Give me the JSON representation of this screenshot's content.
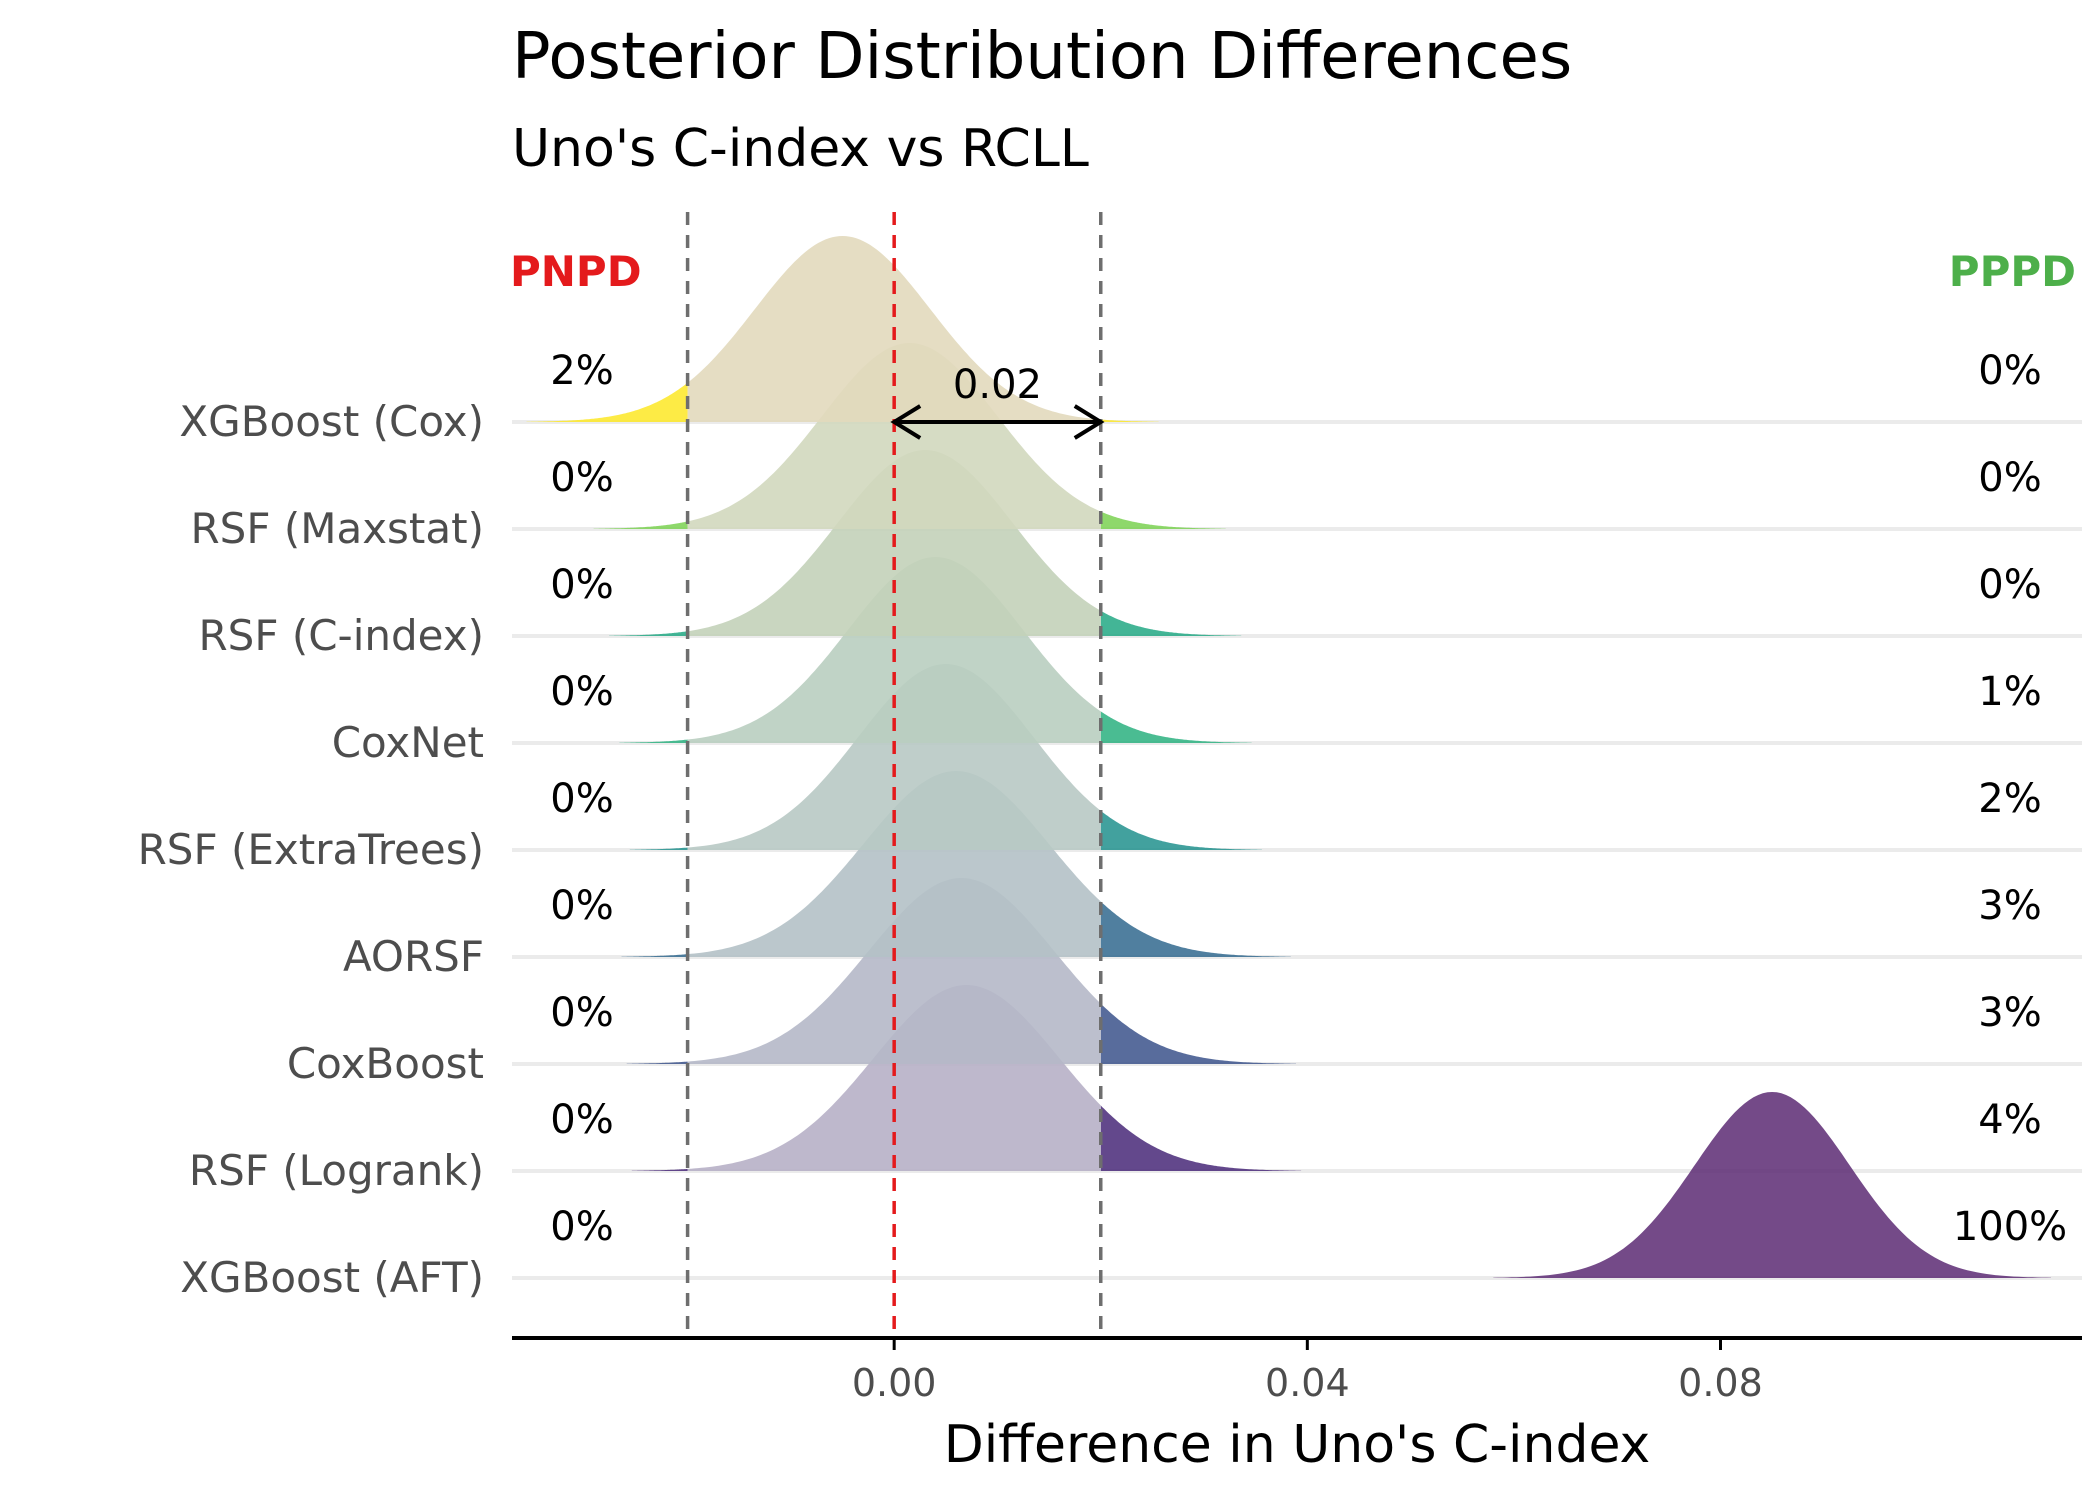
{
  "chart_data": {
    "type": "ridgeline",
    "title": "Posterior Distribution Differences",
    "subtitle": "Uno's C-index vs RCLL",
    "xlabel": "Difference in Uno's C-index",
    "xlim": [
      -0.037,
      0.115
    ],
    "xticks": [
      "0.00",
      "0.04",
      "0.08"
    ],
    "xtick_values": [
      0,
      0.04,
      0.08
    ],
    "rope": [
      -0.02,
      0.02
    ],
    "zero_line_color": "#e41a1c",
    "rope_line_color": "#6e6e6e",
    "left_header": {
      "label": "PNPD",
      "color": "#e41a1c"
    },
    "right_header": {
      "label": "PPPD",
      "color": "#4daf4a"
    },
    "rope_annotation": "0.02",
    "series": [
      {
        "name": "XGBoost (Cox)",
        "mean": -0.005,
        "sd": 0.0085,
        "pnpd": "2%",
        "pppd": "0%",
        "tail_color": "#fde725",
        "body_color": "#e2d9bc"
      },
      {
        "name": "RSF (Maxstat)",
        "mean": 0.0015,
        "sd": 0.0085,
        "pnpd": "0%",
        "pppd": "0%",
        "tail_color": "#7ad151",
        "body_color": "#d2d8be"
      },
      {
        "name": "RSF (C-index)",
        "mean": 0.003,
        "sd": 0.0085,
        "pnpd": "0%",
        "pppd": "0%",
        "tail_color": "#22a884",
        "body_color": "#c3d1b9"
      },
      {
        "name": "CoxNet",
        "mean": 0.004,
        "sd": 0.0085,
        "pnpd": "0%",
        "pppd": "1%",
        "tail_color": "#2ab07f",
        "body_color": "#b9cec0"
      },
      {
        "name": "RSF (ExtraTrees)",
        "mean": 0.005,
        "sd": 0.0085,
        "pnpd": "0%",
        "pppd": "2%",
        "tail_color": "#21908d",
        "body_color": "#b8c9c4"
      },
      {
        "name": "AORSF",
        "mean": 0.006,
        "sd": 0.009,
        "pnpd": "0%",
        "pppd": "3%",
        "tail_color": "#31688e",
        "body_color": "#b4c1c6"
      },
      {
        "name": "CoxBoost",
        "mean": 0.0065,
        "sd": 0.009,
        "pnpd": "0%",
        "pppd": "3%",
        "tail_color": "#3b528b",
        "body_color": "#b5b8c8"
      },
      {
        "name": "RSF (Logrank)",
        "mean": 0.007,
        "sd": 0.009,
        "pnpd": "0%",
        "pppd": "4%",
        "tail_color": "#482878",
        "body_color": "#b7b0c6"
      },
      {
        "name": "XGBoost (AFT)",
        "mean": 0.085,
        "sd": 0.0075,
        "pnpd": "0%",
        "pppd": "100%",
        "tail_color": "#5c2a73",
        "body_color": "#5c2a73"
      }
    ]
  }
}
